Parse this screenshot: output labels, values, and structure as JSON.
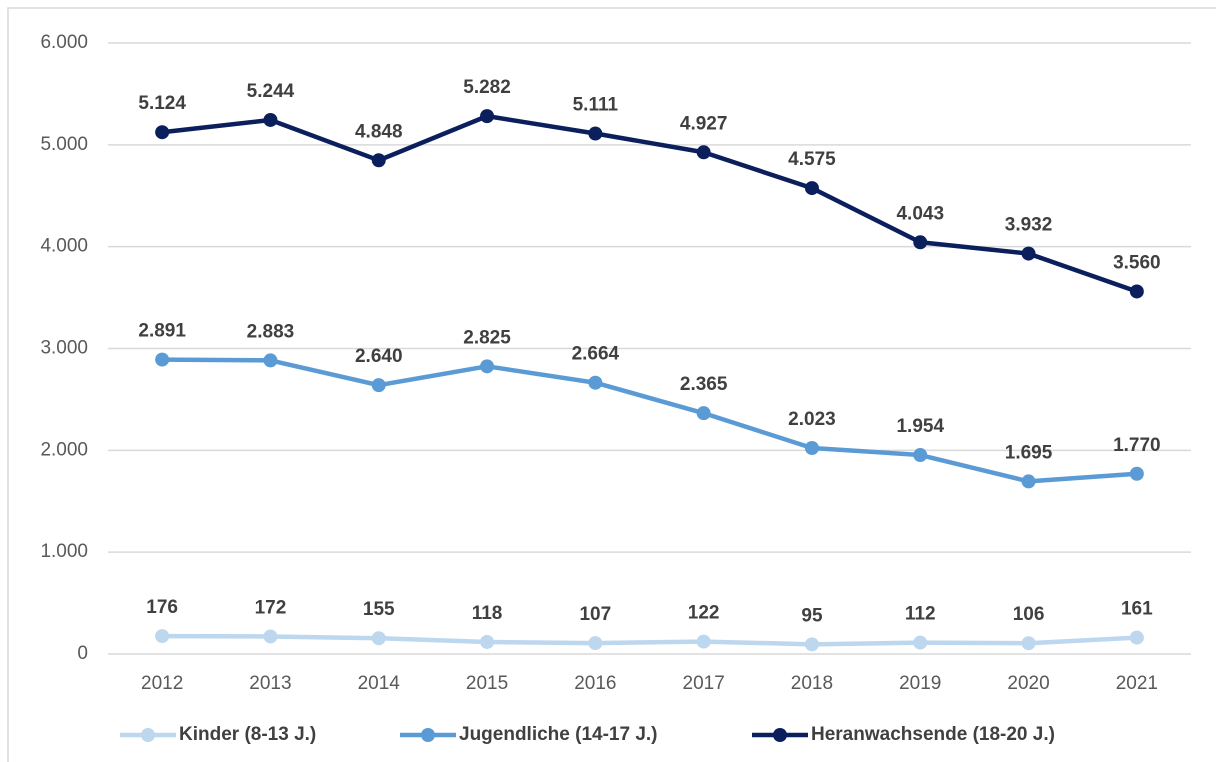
{
  "chart_data": {
    "type": "line",
    "categories": [
      "2012",
      "2013",
      "2014",
      "2015",
      "2016",
      "2017",
      "2018",
      "2019",
      "2020",
      "2021"
    ],
    "series": [
      {
        "name": "Kinder (8-13 J.)",
        "color": "#bdd7ee",
        "values": [
          176,
          172,
          155,
          118,
          107,
          122,
          95,
          112,
          106,
          161
        ],
        "value_labels": [
          "176",
          "172",
          "155",
          "118",
          "107",
          "122",
          "95",
          "112",
          "106",
          "161"
        ]
      },
      {
        "name": "Jugendliche (14-17 J.)",
        "color": "#5b9bd5",
        "values": [
          2891,
          2883,
          2640,
          2825,
          2664,
          2365,
          2023,
          1954,
          1695,
          1770
        ],
        "value_labels": [
          "2.891",
          "2.883",
          "2.640",
          "2.825",
          "2.664",
          "2.365",
          "2.023",
          "1.954",
          "1.695",
          "1.770"
        ]
      },
      {
        "name": "Heranwachsende (18-20 J.)",
        "color": "#0b1f5c",
        "values": [
          5124,
          5244,
          4848,
          5282,
          5111,
          4927,
          4575,
          4043,
          3932,
          3560
        ],
        "value_labels": [
          "5.124",
          "5.244",
          "4.848",
          "5.282",
          "5.111",
          "4.927",
          "4.575",
          "4.043",
          "3.932",
          "3.560"
        ]
      }
    ],
    "ylim": [
      0,
      6000
    ],
    "yticks": [
      0,
      {
        "value": 1000,
        "label": "1.000"
      },
      {
        "value": 2000,
        "label": "2.000"
      },
      {
        "value": 3000,
        "label": "3.000"
      },
      {
        "value": 4000,
        "label": "4.000"
      },
      {
        "value": 5000,
        "label": "5.000"
      },
      {
        "value": 6000,
        "label": "6.000"
      }
    ],
    "grid": true,
    "legend": "bottom"
  }
}
